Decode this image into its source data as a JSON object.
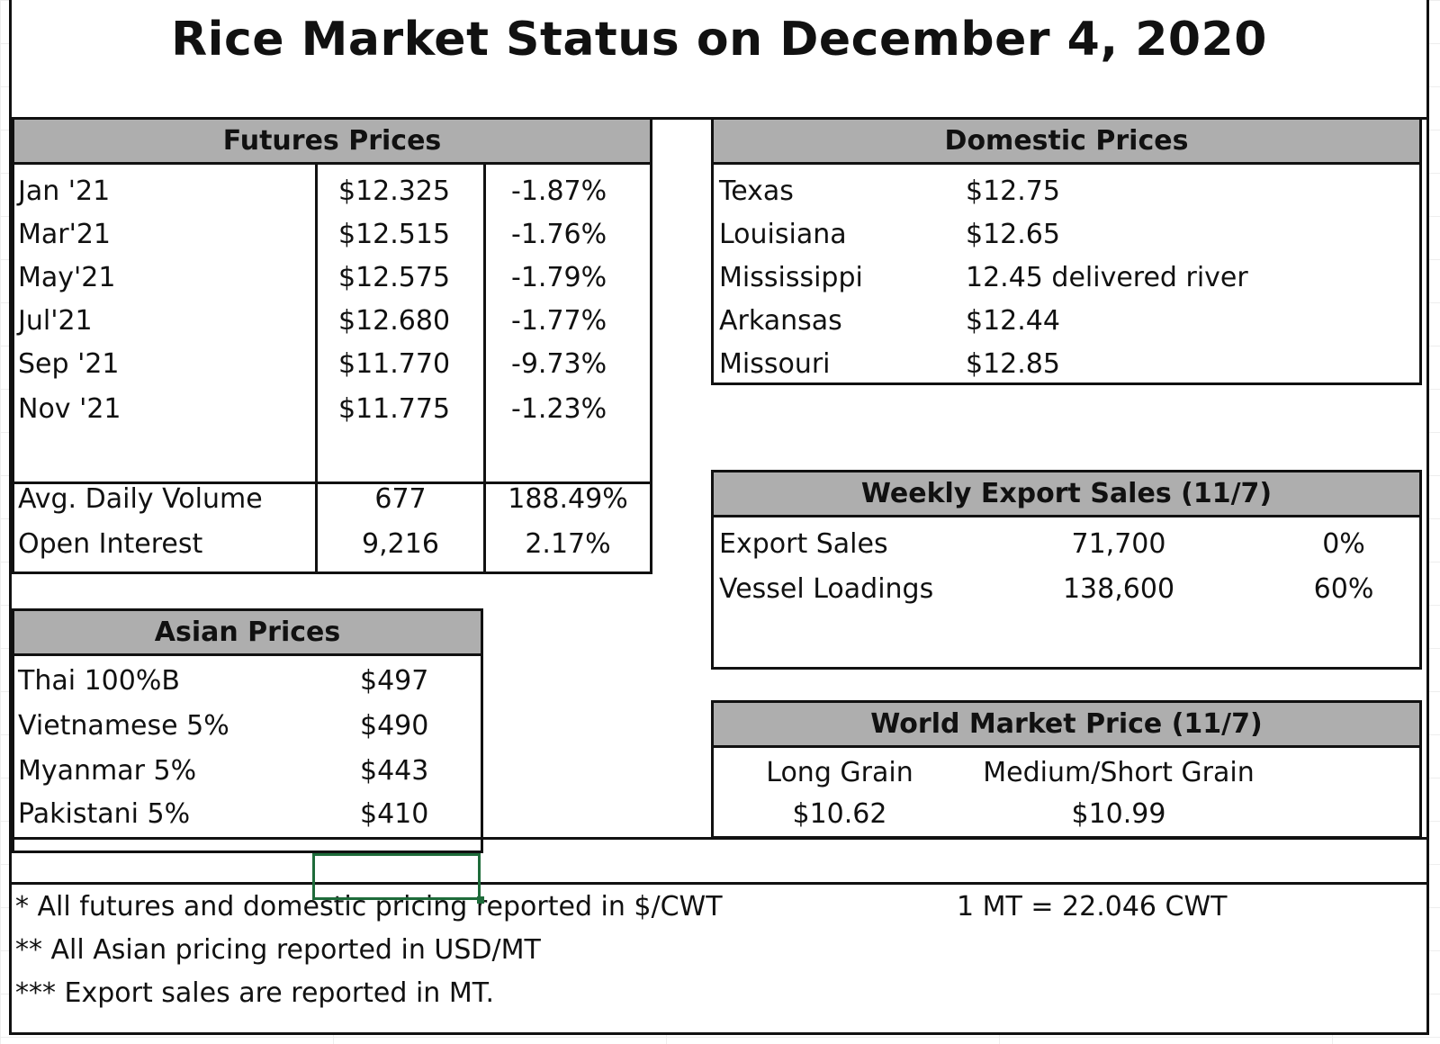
{
  "title": "Rice Market Status on December 4, 2020",
  "futures": {
    "header": "Futures Prices",
    "rows": [
      {
        "label": "Jan '21",
        "price": "$12.325",
        "change": "-1.87%"
      },
      {
        "label": "Mar'21",
        "price": "$12.515",
        "change": "-1.76%"
      },
      {
        "label": "May'21",
        "price": "$12.575",
        "change": "-1.79%"
      },
      {
        "label": "Jul'21",
        "price": "$12.680",
        "change": "-1.77%"
      },
      {
        "label": "Sep '21",
        "price": "$11.770",
        "change": "-9.73%"
      },
      {
        "label": "Nov '21",
        "price": "$11.775",
        "change": "-1.23%"
      }
    ],
    "stats": [
      {
        "label": "Avg. Daily Volume",
        "value": "677",
        "change": "188.49%"
      },
      {
        "label": "Open Interest",
        "value": "9,216",
        "change": "2.17%"
      }
    ]
  },
  "domestic": {
    "header": "Domestic Prices",
    "rows": [
      {
        "label": "Texas",
        "value": "$12.75"
      },
      {
        "label": "Louisiana",
        "value": "$12.65"
      },
      {
        "label": "Mississippi",
        "value": "12.45 delivered river"
      },
      {
        "label": "Arkansas",
        "value": "$12.44"
      },
      {
        "label": "Missouri",
        "value": "$12.85"
      }
    ]
  },
  "export": {
    "header": "Weekly Export Sales (11/7)",
    "rows": [
      {
        "label": "Export Sales",
        "value": "71,700",
        "pct": "0%"
      },
      {
        "label": "Vessel Loadings",
        "value": "138,600",
        "pct": "60%"
      }
    ]
  },
  "asian": {
    "header": "Asian Prices",
    "rows": [
      {
        "label": "Thai 100%B",
        "value": "$497"
      },
      {
        "label": "Vietnamese 5%",
        "value": "$490"
      },
      {
        "label": "Myanmar 5%",
        "value": "$443"
      },
      {
        "label": "Pakistani 5%",
        "value": "$410"
      }
    ]
  },
  "world": {
    "header": "World Market Price (11/7)",
    "long_label": "Long Grain",
    "long_value": "$10.62",
    "medium_label": "Medium/Short Grain",
    "medium_value": "$10.99"
  },
  "notes": {
    "n1": "* All futures and domestic pricing reported in $/CWT",
    "n2": "** All Asian pricing reported in USD/MT",
    "n3": "*** Export sales are reported in MT.",
    "conversion": "1 MT = 22.046 CWT"
  },
  "colors": {
    "header_bg": "#aeaeae",
    "selection": "#1e6b3a"
  }
}
